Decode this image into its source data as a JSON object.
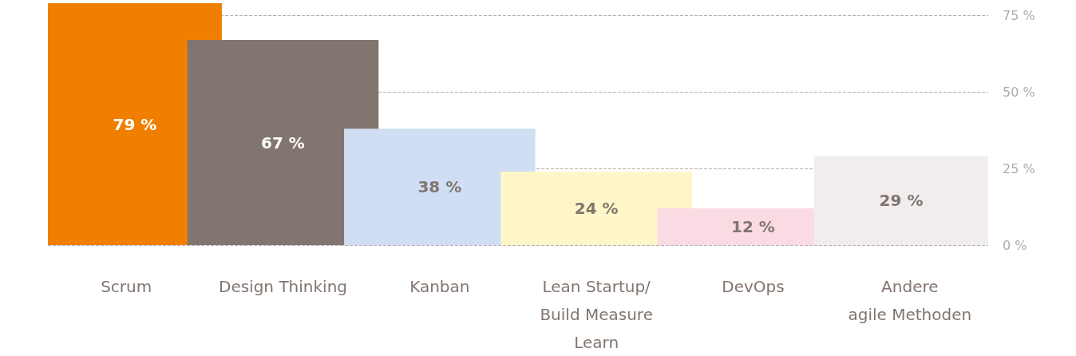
{
  "chart_data": {
    "type": "bar",
    "categories": [
      "Scrum",
      "Design Thinking",
      "Kanban",
      "Lean Startup/\nBuild Measure\nLearn",
      "DevOps",
      "Andere\nagile Methoden"
    ],
    "values": [
      79,
      67,
      38,
      24,
      12,
      29
    ],
    "colors": [
      "#f07f00",
      "#82756f",
      "#cfdef3",
      "#fef6c8",
      "#fadbe3",
      "#f1ecee"
    ],
    "value_labels": [
      "79 %",
      "67 %",
      "38 %",
      "24 %",
      "12 %",
      "29 %"
    ],
    "ylim": [
      0,
      79
    ],
    "yticks": [
      {
        "value": 0,
        "label": "0 %"
      },
      {
        "value": 25,
        "label": "25 %"
      },
      {
        "value": 50,
        "label": "50 %"
      },
      {
        "value": 75,
        "label": "75 %"
      }
    ],
    "grid": "y"
  }
}
